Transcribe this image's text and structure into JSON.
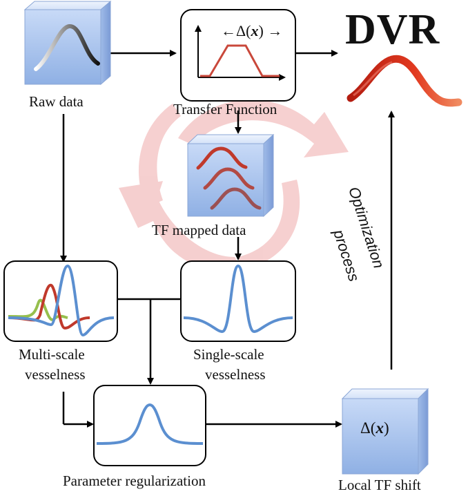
{
  "title": "DVR",
  "labels": {
    "raw_data": "Raw data",
    "transfer_function": "Transfer  Function",
    "tf_mapped_data": "TF mapped  data",
    "multi_scale_line1": "Multi-scale",
    "multi_scale_line2": "vesselness",
    "single_scale_line1": "Single-scale",
    "single_scale_line2": "vesselness",
    "parameter_regularization": "Parameter regularization",
    "local_tf_shift": "Local TF shift",
    "optimization_line1": "Optimization",
    "optimization_line2": "process"
  },
  "math": {
    "delta_prefix": "Δ(",
    "delta_var": "x",
    "delta_suffix": ")",
    "left_arrow": "←",
    "right_arrow": "→"
  },
  "colors": {
    "cube_light": "#dfe9fb",
    "cube_dark": "#7fa2de",
    "curve_blue": "#5b8fd0",
    "curve_red": "#c0392b",
    "curve_green": "#96bf4d",
    "cycle_arrow": "#f3c4c4",
    "vessel_red": "#d6321c"
  }
}
